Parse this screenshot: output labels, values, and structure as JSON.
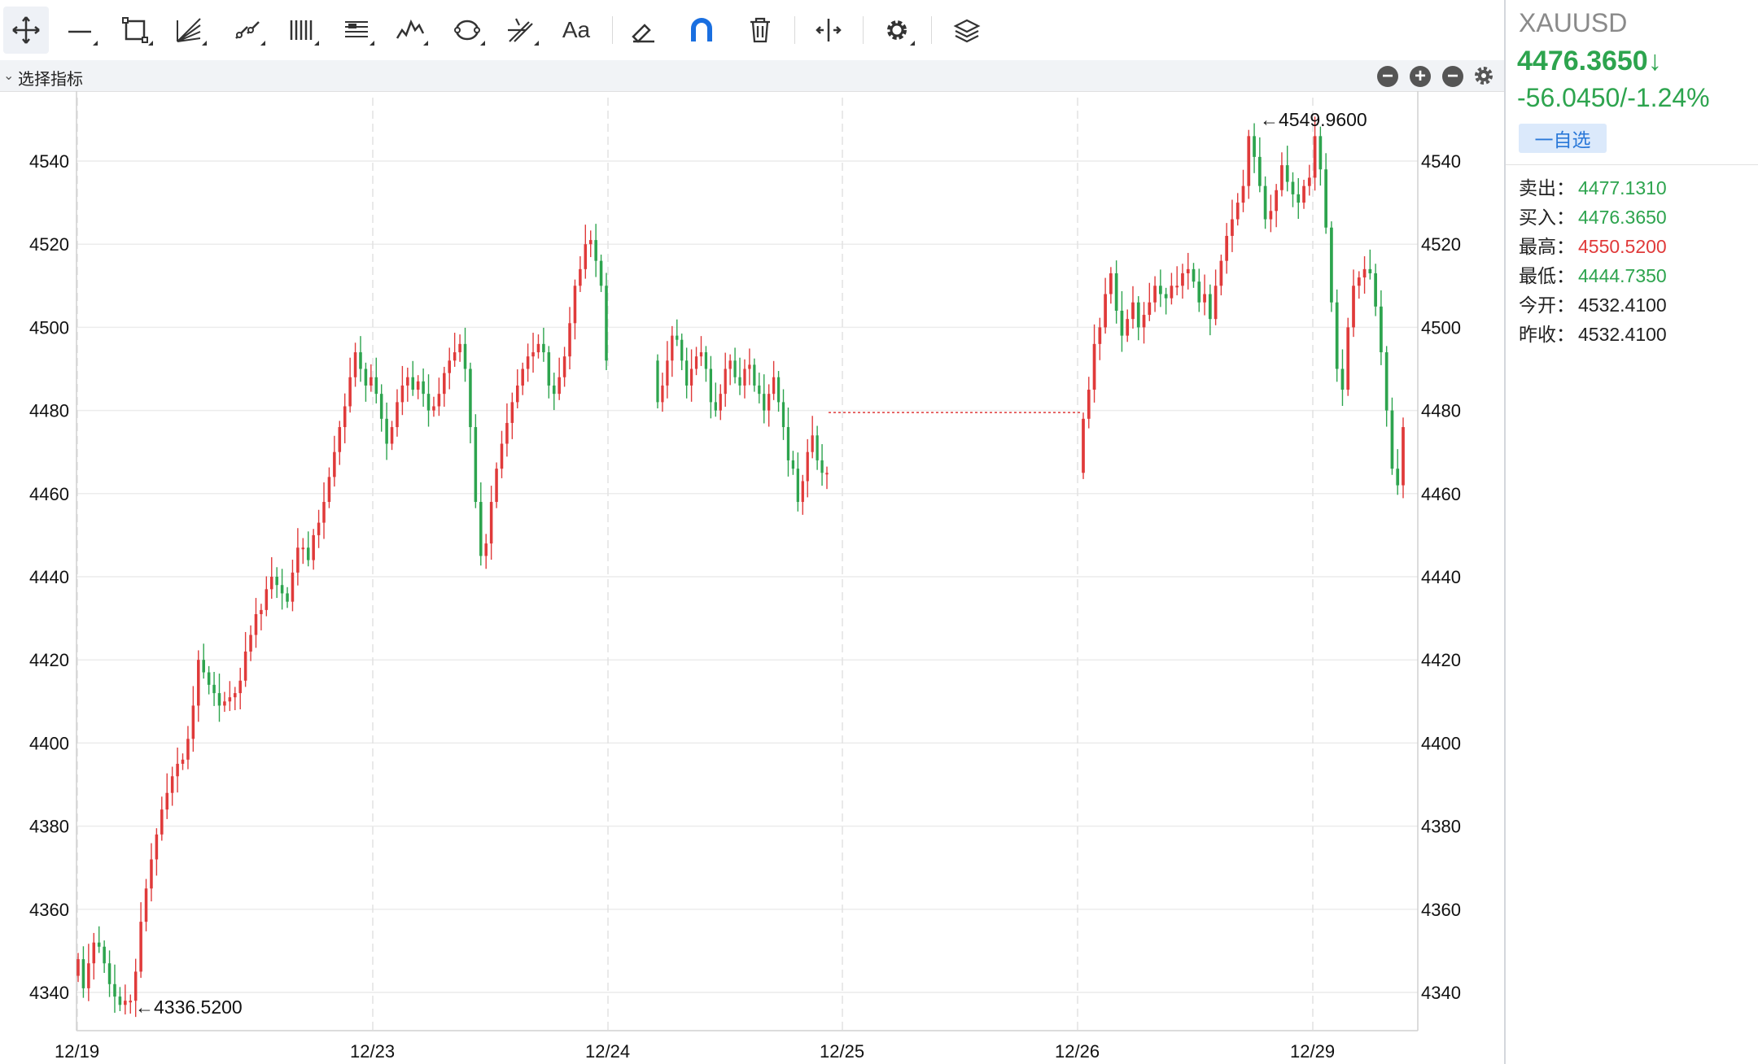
{
  "toolbar": {
    "tools": [
      {
        "name": "crosshair-move-tool"
      },
      {
        "name": "line-tool"
      },
      {
        "name": "rectangle-tool"
      },
      {
        "name": "fan-tool"
      },
      {
        "name": "channel-tool"
      },
      {
        "name": "vertical-lines-tool"
      },
      {
        "name": "fibonacci-tool"
      },
      {
        "name": "wave-tool"
      },
      {
        "name": "cycle-tool"
      },
      {
        "name": "pitchfork-tool"
      },
      {
        "name": "text-tool",
        "label": "Aa"
      },
      {
        "name": "eraser-tool"
      },
      {
        "name": "magnet-tool"
      },
      {
        "name": "delete-tool"
      },
      {
        "name": "split-tool"
      },
      {
        "name": "settings-tool"
      },
      {
        "name": "layers-tool"
      }
    ]
  },
  "indicator_bar": {
    "label": "选择指标",
    "icons": [
      "minus-circle-icon",
      "plus-circle-icon",
      "minus-circle-icon",
      "gear-icon"
    ]
  },
  "quote": {
    "symbol": "XAUUSD",
    "last": "4476.3650↓",
    "change": "-56.0450/-1.24%",
    "watch_label": "一自选",
    "rows": [
      {
        "label": "卖出：",
        "value": "4477.1310",
        "color": "#2da44e"
      },
      {
        "label": "买入：",
        "value": "4476.3650",
        "color": "#2da44e"
      },
      {
        "label": "最高：",
        "value": "4550.5200",
        "color": "#e03a3a"
      },
      {
        "label": "最低：",
        "value": "4444.7350",
        "color": "#2da44e"
      },
      {
        "label": "今开：",
        "value": "4532.4100",
        "color": "#222222"
      },
      {
        "label": "昨收：",
        "value": "4532.4100",
        "color": "#222222"
      }
    ]
  },
  "chart_data": {
    "type": "candlestick",
    "up_color": "#e03a3a",
    "down_color": "#2da44e",
    "ylim": [
      4330,
      4552
    ],
    "yticks": [
      4340,
      4360,
      4380,
      4400,
      4420,
      4440,
      4460,
      4480,
      4500,
      4520,
      4540
    ],
    "xticks": [
      "12/19",
      "12/23",
      "12/24",
      "12/25",
      "12/26",
      "12/29"
    ],
    "annotations": [
      {
        "text": "←4549.9600",
        "value": 4549.96
      },
      {
        "text": "←4336.5200",
        "value": 4336.52
      }
    ],
    "gap_line_value": 4479.5,
    "segments": [
      {
        "day": "12/19–12/23",
        "closes": [
          4348,
          4341,
          4347,
          4352,
          4351,
          4347,
          4342,
          4339,
          4337,
          4338,
          4338,
          4345,
          4357,
          4365,
          4372,
          4378,
          4384,
          4388,
          4392,
          4395,
          4396,
          4401,
          4409,
          4420,
          4417,
          4414,
          4412,
          4409,
          4410,
          4411,
          4412,
          4415,
          4422,
          4426,
          4431,
          4432,
          4437,
          4440,
          4438,
          4436,
          4434,
          4441,
          4447,
          4447,
          4444,
          4450,
          4453,
          4458,
          4464,
          4470,
          4476,
          4481,
          4488,
          4494,
          4490,
          4486,
          4488,
          4484,
          4478,
          4472,
          4476,
          4482,
          4486,
          4488,
          4485,
          4487,
          4484,
          4480,
          4481,
          4484,
          4489,
          4492,
          4494,
          4496,
          4490,
          4476,
          4458,
          4445,
          4448,
          4458,
          4466,
          4472,
          4477,
          4482,
          4486,
          4490,
          4493,
          4494,
          4496,
          4494,
          4486,
          4484,
          4488,
          4493,
          4501,
          4510,
          4514,
          4520,
          4521,
          4516,
          4510,
          4492
        ]
      },
      {
        "day": "12/24",
        "closes": [
          4482,
          4486,
          4492,
          4498,
          4497,
          4492,
          4486,
          4490,
          4493,
          4494,
          4490,
          4482,
          4480,
          4484,
          4490,
          4492,
          4488,
          4486,
          4490,
          4491,
          4486,
          4484,
          4480,
          4484,
          4488,
          4482,
          4476,
          4468,
          4466,
          4458,
          4463,
          4470,
          4474,
          4468,
          4465,
          4465
        ]
      },
      {
        "day": "12/26–12/29",
        "closes": [
          4478,
          4485,
          4496,
          4500,
          4508,
          4513,
          4504,
          4498,
          4502,
          4506,
          4500,
          4503,
          4506,
          4510,
          4508,
          4507,
          4510,
          4510,
          4513,
          4514,
          4511,
          4506,
          4508,
          4502,
          4510,
          4516,
          4522,
          4526,
          4530,
          4534,
          4546,
          4541,
          4534,
          4526,
          4528,
          4533,
          4539,
          4535,
          4532,
          4530,
          4534,
          4536,
          4546,
          4538,
          4524,
          4506,
          4490,
          4485,
          4500,
          4510,
          4512,
          4514,
          4513,
          4505,
          4494,
          4480,
          4466,
          4462,
          4476
        ]
      }
    ]
  }
}
